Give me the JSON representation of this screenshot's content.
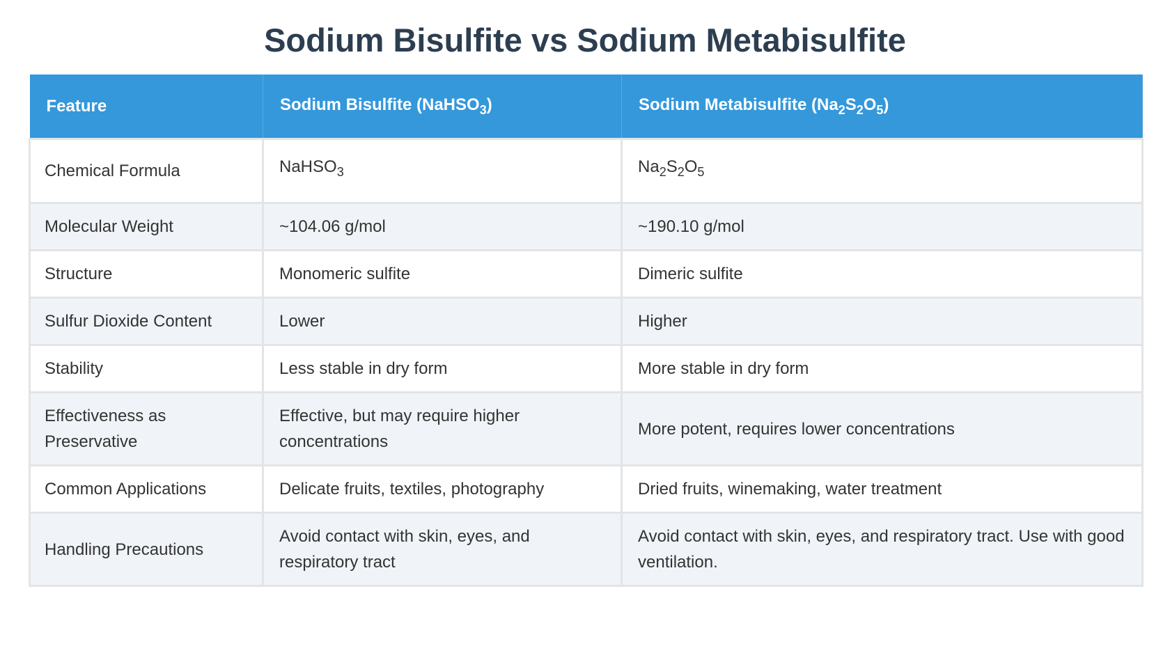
{
  "title": "Sodium Bisulfite vs Sodium Metabisulfite",
  "headers": {
    "feature": "Feature",
    "bisulfite_name": "Sodium Bisulfite (NaHSO",
    "bisulfite_sub3": "3",
    "bisulfite_close": ")",
    "meta_name": "Sodium Metabisulfite (Na",
    "meta_sub2a": "2",
    "meta_s": "S",
    "meta_sub2b": "2",
    "meta_o": "O",
    "meta_sub5": "5",
    "meta_close": ")"
  },
  "formula_row": {
    "feature": "Chemical Formula",
    "bisulfite": "NaHSO",
    "bisulfite_sub": "3",
    "meta_na": "Na",
    "meta_sub2a": "2",
    "meta_s": "S",
    "meta_sub2b": "2",
    "meta_o": "O",
    "meta_sub5": "5"
  },
  "rows": [
    {
      "feature": "Molecular Weight",
      "bisulfite": "~104.06 g/mol",
      "metabisulfite": "~190.10 g/mol"
    },
    {
      "feature": "Structure",
      "bisulfite": "Monomeric sulfite",
      "metabisulfite": "Dimeric sulfite"
    },
    {
      "feature": "Sulfur Dioxide Content",
      "bisulfite": "Lower",
      "metabisulfite": "Higher"
    },
    {
      "feature": "Stability",
      "bisulfite": "Less stable in dry form",
      "metabisulfite": "More stable in dry form"
    },
    {
      "feature": "Effectiveness as Preservative",
      "bisulfite": "Effective, but may require higher concentrations",
      "metabisulfite": "More potent, requires lower concentrations"
    },
    {
      "feature": "Common Applications",
      "bisulfite": "Delicate fruits, textiles, photography",
      "metabisulfite": "Dried fruits, winemaking, water treatment"
    },
    {
      "feature": "Handling Precautions",
      "bisulfite": "Avoid contact with skin, eyes, and respiratory tract",
      "metabisulfite": "Avoid contact with skin, eyes, and respiratory tract. Use with good ventilation."
    }
  ],
  "colors": {
    "header_bg": "#3498db",
    "title": "#2c3e50",
    "alt_row": "#f0f4f8"
  }
}
